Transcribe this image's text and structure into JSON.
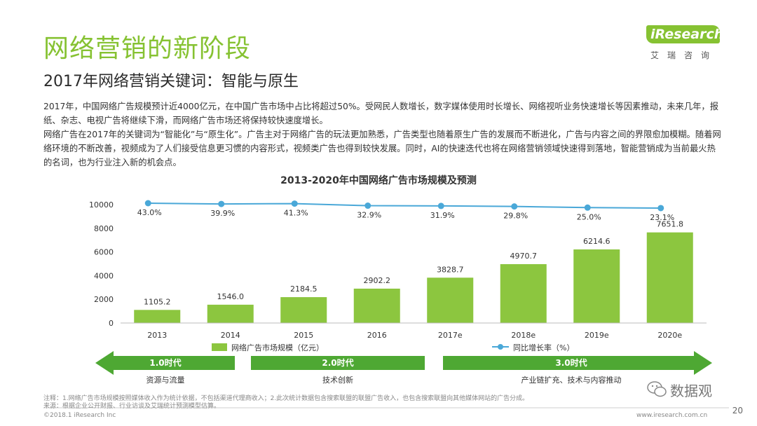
{
  "header": {
    "title": "网络营销的新阶段",
    "subtitle": "2017年网络营销关键词：智能与原生",
    "logo_text": "iResearch",
    "logo_cn": "艾瑞咨询"
  },
  "body": {
    "paragraphs": [
      "2017年，中国网络广告规模预计近4000亿元，在中国广告市场中占比将超过50%。受网民人数增长，数字媒体使用时长增长、网络视听业务快速增长等因素推动，未来几年，报纸、杂志、电视广告将继续下滑，而网络广告市场还将保持较快速度增长。",
      "网络广告在2017年的关键词为“智能化”与“原生化”。广告主对于网络广告的玩法更加熟悉，广告类型也随着原生广告的发展而不断进化，广告与内容之间的界限愈加模糊。随着网络环境的不断改善，视频成为了人们接受信息更习惯的内容形式，视频类广告也得到较快发展。同时，AI的快速迭代也将在网络营销领域快速得到落地，智能营销成为当前最火热的名词，也为行业注入新的机会点。"
    ]
  },
  "chart_data": {
    "type": "bar",
    "title": "2013-2020年中国网络广告市场规模及预测",
    "categories": [
      "2013",
      "2014",
      "2015",
      "2016",
      "2017e",
      "2018e",
      "2019e",
      "2020e"
    ],
    "series": [
      {
        "name": "网络广告市场规模（亿元）",
        "type": "bar",
        "values": [
          1105.2,
          1546.0,
          2184.5,
          2902.2,
          3828.7,
          4970.7,
          6214.6,
          7651.8
        ],
        "value_labels": [
          "1105.2",
          "1546.0",
          "2184.5",
          "2902.2",
          "3828.7",
          "4970.7",
          "6214.6",
          "7651.8"
        ],
        "color": "#8cc63f"
      },
      {
        "name": "同比增长率（%）",
        "type": "line",
        "values": [
          43.0,
          39.9,
          41.3,
          32.9,
          31.9,
          29.8,
          25.0,
          23.1
        ],
        "value_labels": [
          "43.0%",
          "39.9%",
          "41.3%",
          "32.9%",
          "31.9%",
          "29.8%",
          "25.0%",
          "23.1%"
        ],
        "color": "#4aa8d8"
      }
    ],
    "yaxis": {
      "ticks": [
        0,
        2000,
        4000,
        6000,
        8000,
        10000
      ],
      "ylim": [
        0,
        10000
      ]
    },
    "legend_position": "bottom",
    "grid": false
  },
  "eras": [
    {
      "label": "1.0时代",
      "sublabel": "资源与流量",
      "direction": "left"
    },
    {
      "label": "2.0时代",
      "sublabel": "技术创新",
      "direction": "none"
    },
    {
      "label": "3.0时代",
      "sublabel": "产业链扩充、技术与内容推动",
      "direction": "right"
    }
  ],
  "colors": {
    "accent": "#86c232",
    "bar": "#8cc63f",
    "line": "#4aa8d8",
    "arrow": "#4ea833"
  },
  "footer": {
    "note1": "注释：1.网络广告市场规模按照媒体收入作为统计依据，不包括渠道代理商收入；2.此次统计数据包含搜索联盟的联盟广告收入，也包含搜索联盟向其他媒体网站的广告分成。",
    "note2": "来源：根据企业公开财报、行业访谈及艾瑞统计预测模型估算。",
    "copyright": "©2018.1 iResearch Inc",
    "website": "www.iresearch.com.cn",
    "page_number": "20",
    "watermark": "数据观"
  }
}
